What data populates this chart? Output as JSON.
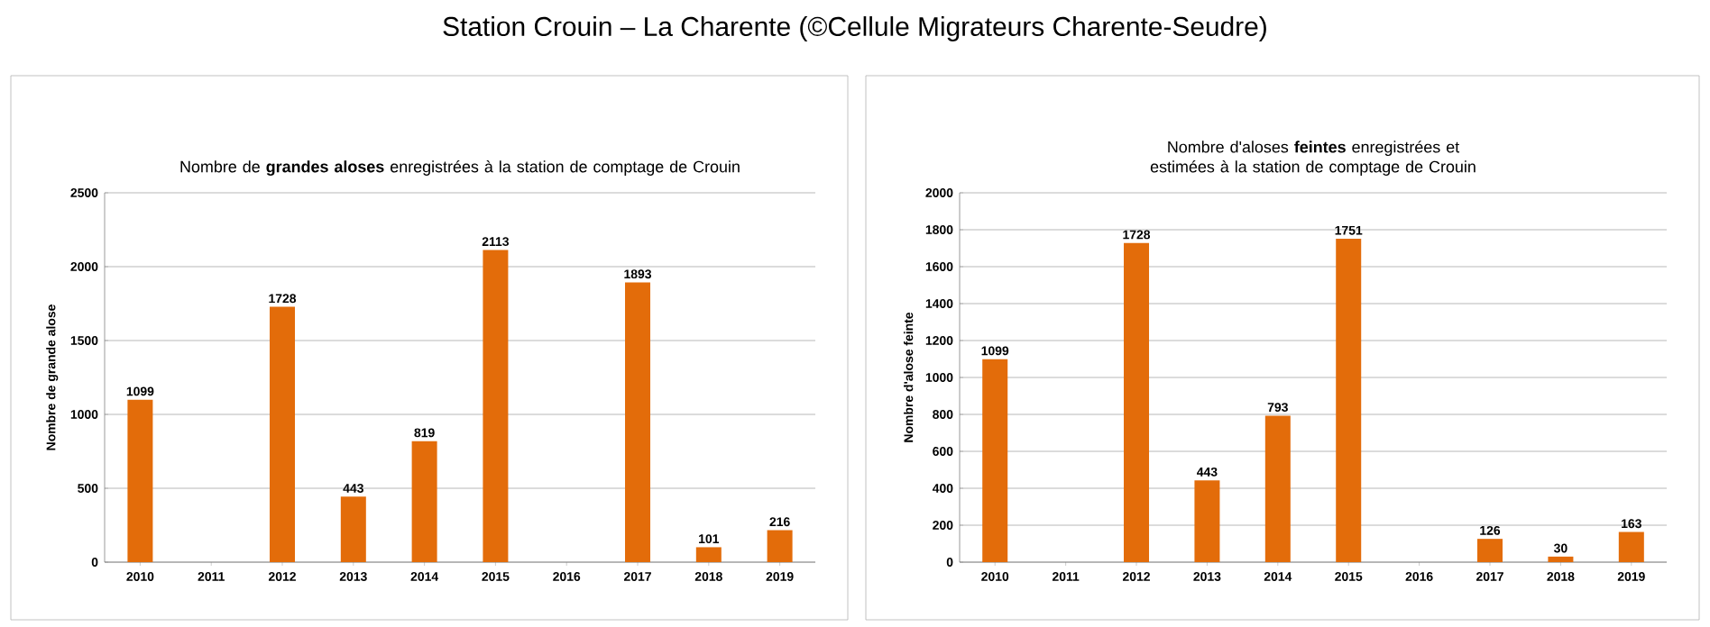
{
  "chart_data": [
    {
      "type": "bar",
      "title": "Nombre de **grandes aloses** enregistrées à la station de comptage de Crouin",
      "ylabel": "Nombre de grande alose",
      "annotations": [
        "Station Crouin – La Charente (©Cellule Migrateurs Charente-Seudre)"
      ],
      "categories": [
        "2010",
        "2011",
        "2012",
        "2013",
        "2014",
        "2015",
        "2016",
        "2017",
        "2018",
        "2019"
      ],
      "values": [
        1099,
        null,
        1728,
        443,
        819,
        2113,
        null,
        1893,
        101,
        216
      ],
      "color": "#e36c0a",
      "ylim": [
        0,
        2500
      ],
      "yticks": [
        0,
        500,
        1000,
        1500,
        2000,
        2500
      ],
      "grid": "y",
      "data_labels": true
    },
    {
      "type": "bar",
      "title": "Nombre d'aloses **feintes** enregistrées et estimées à la station de comptage de Crouin",
      "ylabel": "Nombre d'alose feinte",
      "categories": [
        "2010",
        "2011",
        "2012",
        "2013",
        "2014",
        "2015",
        "2016",
        "2017",
        "2018",
        "2019"
      ],
      "values": [
        1099,
        null,
        1728,
        443,
        793,
        1751,
        null,
        126,
        30,
        163
      ],
      "color": "#e36c0a",
      "ylim": [
        0,
        2000
      ],
      "yticks": [
        0,
        200,
        400,
        600,
        800,
        1000,
        1200,
        1400,
        1600,
        1800,
        2000
      ],
      "grid": "y",
      "data_labels": true
    }
  ]
}
